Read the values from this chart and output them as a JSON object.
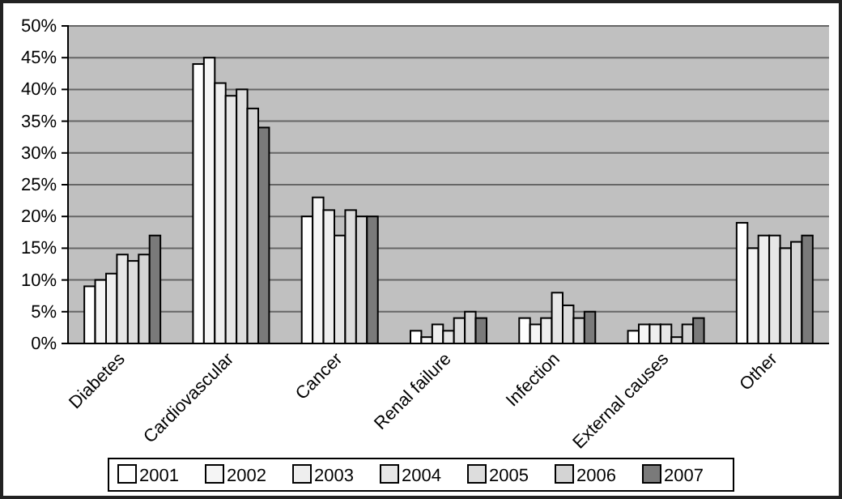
{
  "chart_data": {
    "type": "bar",
    "categories": [
      "Diabetes",
      "Cardiovascular",
      "Cancer",
      "Renal failure",
      "Infection",
      "External causes",
      "Other"
    ],
    "series": [
      {
        "name": "2001",
        "color": "#ffffff",
        "values": [
          9,
          44,
          20,
          2,
          4,
          2,
          19
        ]
      },
      {
        "name": "2002",
        "color": "#f5f5f5",
        "values": [
          10,
          45,
          23,
          1,
          3,
          3,
          15
        ]
      },
      {
        "name": "2003",
        "color": "#eeeeee",
        "values": [
          11,
          41,
          21,
          3,
          4,
          3,
          17
        ]
      },
      {
        "name": "2004",
        "color": "#e6e6e6",
        "values": [
          14,
          39,
          17,
          2,
          8,
          3,
          17
        ]
      },
      {
        "name": "2005",
        "color": "#dddddd",
        "values": [
          13,
          40,
          21,
          4,
          6,
          1,
          15
        ]
      },
      {
        "name": "2006",
        "color": "#d4d4d4",
        "values": [
          14,
          37,
          20,
          5,
          4,
          3,
          16
        ]
      },
      {
        "name": "2007",
        "color": "#7a7a7a",
        "values": [
          17,
          34,
          20,
          4,
          5,
          4,
          17
        ]
      }
    ],
    "ylim": [
      0,
      50
    ],
    "yticks": [
      {
        "value": 0,
        "label": "0%"
      },
      {
        "value": 5,
        "label": "5%"
      },
      {
        "value": 10,
        "label": "10%"
      },
      {
        "value": 15,
        "label": "15%"
      },
      {
        "value": 20,
        "label": "20%"
      },
      {
        "value": 25,
        "label": "25%"
      },
      {
        "value": 30,
        "label": "30%"
      },
      {
        "value": 35,
        "label": "35%"
      },
      {
        "value": 40,
        "label": "40%"
      },
      {
        "value": 45,
        "label": "45%"
      },
      {
        "value": 50,
        "label": "50%"
      }
    ],
    "grid": "y",
    "legend": "bottom"
  }
}
